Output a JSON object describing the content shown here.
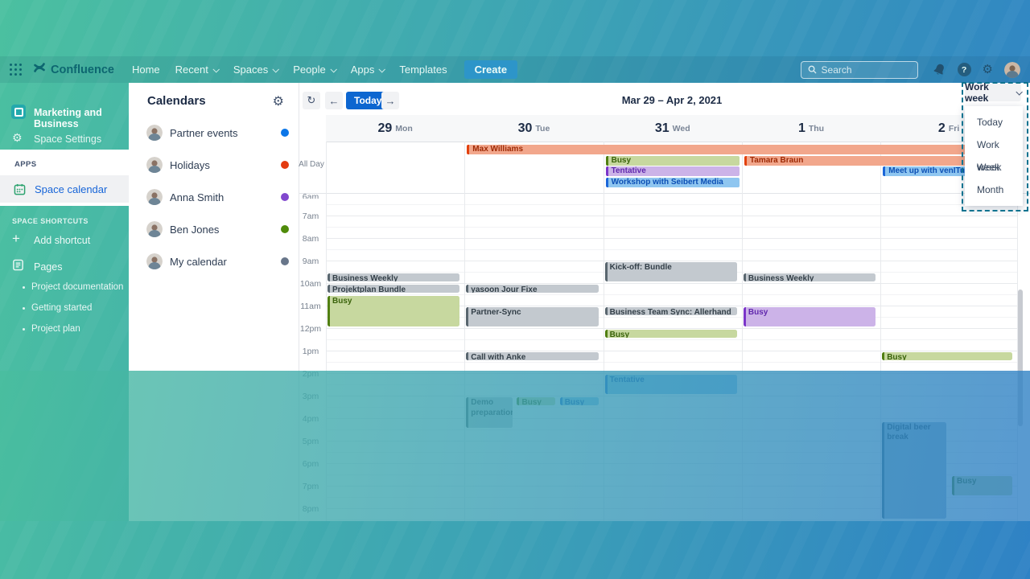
{
  "nav": {
    "brand": "Confluence",
    "items": [
      {
        "label": "Home",
        "caret": false
      },
      {
        "label": "Recent",
        "caret": true
      },
      {
        "label": "Spaces",
        "caret": true
      },
      {
        "label": "People",
        "caret": true
      },
      {
        "label": "Apps",
        "caret": true
      },
      {
        "label": "Templates",
        "caret": false
      }
    ],
    "create_label": "Create",
    "search_placeholder": "Search"
  },
  "sidebar": {
    "space_name": "Marketing and Business",
    "settings": "Space Settings",
    "apps_header": "APPS",
    "calendar_item": "Space calendar",
    "shortcuts_header": "SPACE SHORTCUTS",
    "add_shortcut": "Add shortcut",
    "pages": "Pages",
    "page_links": [
      "Project documentation",
      "Getting started",
      "Project plan"
    ]
  },
  "calendars_panel": {
    "title": "Calendars",
    "items": [
      {
        "name": "Partner events",
        "color": "#0b76e8"
      },
      {
        "name": "Holidays",
        "color": "#e33b10"
      },
      {
        "name": "Anna Smith",
        "color": "#8148ce"
      },
      {
        "name": "Ben Jones",
        "color": "#4f8b0a"
      },
      {
        "name": "My calendar",
        "color": "#68768a"
      }
    ]
  },
  "toolbar": {
    "today": "Today",
    "range": "Mar 29 – Apr 2, 2021"
  },
  "view_menu": {
    "button_label": "Work week",
    "options": [
      "Today",
      "Work week",
      "Week",
      "Month"
    ]
  },
  "colors": {
    "salmon": {
      "bg": "#f2a78c",
      "border": "#e2410e",
      "text": "#9e2a06"
    },
    "green": {
      "bg": "#c7d89f",
      "border": "#517f12",
      "text": "#3a630b"
    },
    "purple": {
      "bg": "#ccb3e8",
      "border": "#7b35c9",
      "text": "#6128ad"
    },
    "blue": {
      "bg": "#8fc6f0",
      "border": "#1b66d8",
      "text": "#0c4fb5"
    },
    "gray": {
      "bg": "#c3c9cf",
      "border": "#59666f",
      "text": "#333f48"
    },
    "grayblue": {
      "bg": "#9db8cf",
      "border": "#3f6484",
      "text": "#24425c"
    }
  },
  "calendar": {
    "all_day_label": "All Day",
    "clipped_time": "6am",
    "days": [
      {
        "num": "29",
        "name": "Mon"
      },
      {
        "num": "30",
        "name": "Tue"
      },
      {
        "num": "31",
        "name": "Wed"
      },
      {
        "num": "1",
        "name": "Thu"
      },
      {
        "num": "2",
        "name": "Fri"
      }
    ],
    "times": [
      "7am",
      "8am",
      "9am",
      "10am",
      "11am",
      "12pm",
      "1pm",
      "2pm",
      "3pm",
      "4pm",
      "5pm",
      "6pm",
      "7pm",
      "8pm"
    ],
    "all_day_events": [
      {
        "title": "Max Williams",
        "lane": 0,
        "from": 1,
        "to": 4,
        "color": "salmon"
      },
      {
        "title": "Busy",
        "lane": 1,
        "from": 2,
        "to": 2,
        "color": "green"
      },
      {
        "title": "Tamara Braun",
        "lane": 1,
        "from": 3,
        "to": 4,
        "color": "salmon"
      },
      {
        "title": "Tentative",
        "lane": 2,
        "from": 2,
        "to": 2,
        "color": "purple"
      },
      {
        "title": "Meet up with venITure",
        "lane": 2,
        "from": 4,
        "to": 4,
        "color": "blue"
      },
      {
        "title": "Workshop with Seibert Media",
        "lane": 3,
        "from": 2,
        "to": 2,
        "color": "blue"
      }
    ],
    "events": [
      {
        "title": "Business Weekly",
        "day": 0,
        "start": 9.5,
        "end": 10,
        "color": "gray"
      },
      {
        "title": "Projektplan Bundle",
        "day": 0,
        "start": 10,
        "end": 10.5,
        "color": "gray"
      },
      {
        "title": "Busy",
        "day": 0,
        "start": 10.5,
        "end": 12,
        "color": "green"
      },
      {
        "title": "yasoon Jour Fixe",
        "day": 1,
        "start": 10,
        "end": 10.5,
        "color": "gray"
      },
      {
        "title": "Partner-Sync",
        "day": 1,
        "start": 11,
        "end": 12,
        "color": "gray"
      },
      {
        "title": "Call with Anke",
        "day": 1,
        "start": 13,
        "end": 13.5,
        "color": "gray"
      },
      {
        "title": "Demo preparation",
        "day": 1,
        "start": 15,
        "end": 16.5,
        "color": "gray",
        "x": 0,
        "w": 0.36
      },
      {
        "title": "Busy",
        "day": 1,
        "start": 15,
        "end": 15.5,
        "color": "green",
        "x": 0.38,
        "w": 0.3
      },
      {
        "title": "Busy",
        "day": 1,
        "start": 15,
        "end": 15.5,
        "color": "blue",
        "x": 0.7,
        "w": 0.3
      },
      {
        "title": "Kick-off: Bundle",
        "day": 2,
        "start": 9,
        "end": 10,
        "color": "gray"
      },
      {
        "title": "Business Team Sync: Allerhand",
        "day": 2,
        "start": 11,
        "end": 11.5,
        "color": "gray"
      },
      {
        "title": "Busy",
        "day": 2,
        "start": 12,
        "end": 12.5,
        "color": "green"
      },
      {
        "title": "Tentative",
        "day": 2,
        "start": 14,
        "end": 15,
        "color": "blue"
      },
      {
        "title": "Business Weekly",
        "day": 3,
        "start": 9.5,
        "end": 10,
        "color": "gray"
      },
      {
        "title": "Busy",
        "day": 3,
        "start": 11,
        "end": 12,
        "color": "purple"
      },
      {
        "title": "Busy",
        "day": 4,
        "start": 13,
        "end": 13.5,
        "color": "green"
      },
      {
        "title": "Digital beer break",
        "day": 4,
        "start": 16.1,
        "end": 20.54,
        "color": "grayblue",
        "x": 0,
        "w": 0.5
      },
      {
        "title": "Busy",
        "day": 4,
        "start": 18.5,
        "end": 19.5,
        "color": "green",
        "x": 0.53,
        "w": 0.47
      }
    ]
  }
}
